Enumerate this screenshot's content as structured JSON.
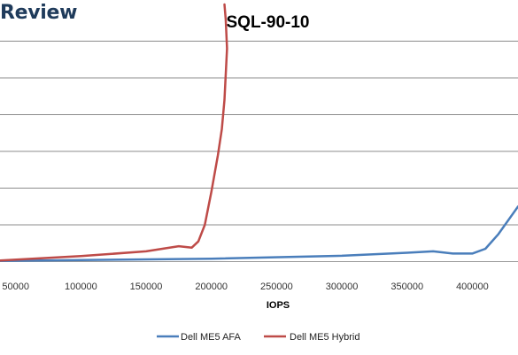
{
  "brand": {
    "text": "Review"
  },
  "chart_data": {
    "type": "line",
    "title": "SQL-90-10",
    "xlabel": "IOPS",
    "ylabel": "",
    "xlim": [
      38000,
      435000
    ],
    "ylim": [
      0,
      7
    ],
    "x_ticks": [
      50000,
      100000,
      150000,
      200000,
      250000,
      300000,
      350000,
      400000
    ],
    "x_tick_labels": [
      "50000",
      "100000",
      "150000",
      "200000",
      "250000",
      "300000",
      "350000",
      "400000"
    ],
    "y_ticks": [
      0,
      1,
      2,
      3,
      4,
      5,
      6
    ],
    "y_tick_labels": [],
    "grid": "horizontal",
    "legend": "bottom",
    "series": [
      {
        "name": "Dell ME5 AFA",
        "color": "#4a7ebb",
        "x": [
          38000,
          100000,
          200000,
          300000,
          350000,
          370000,
          385000,
          400000,
          410000,
          420000,
          435000
        ],
        "y": [
          0.02,
          0.04,
          0.08,
          0.16,
          0.24,
          0.28,
          0.22,
          0.22,
          0.35,
          0.75,
          1.5
        ]
      },
      {
        "name": "Dell ME5 Hybrid",
        "color": "#be4b48",
        "x": [
          38000,
          100000,
          150000,
          175000,
          185000,
          190000,
          195000,
          200000,
          205000,
          208000,
          210000,
          212000,
          211000,
          210000
        ],
        "y": [
          0.03,
          0.15,
          0.28,
          0.42,
          0.38,
          0.55,
          1.0,
          1.9,
          2.9,
          3.6,
          4.4,
          5.8,
          6.6,
          7.0
        ]
      }
    ]
  }
}
